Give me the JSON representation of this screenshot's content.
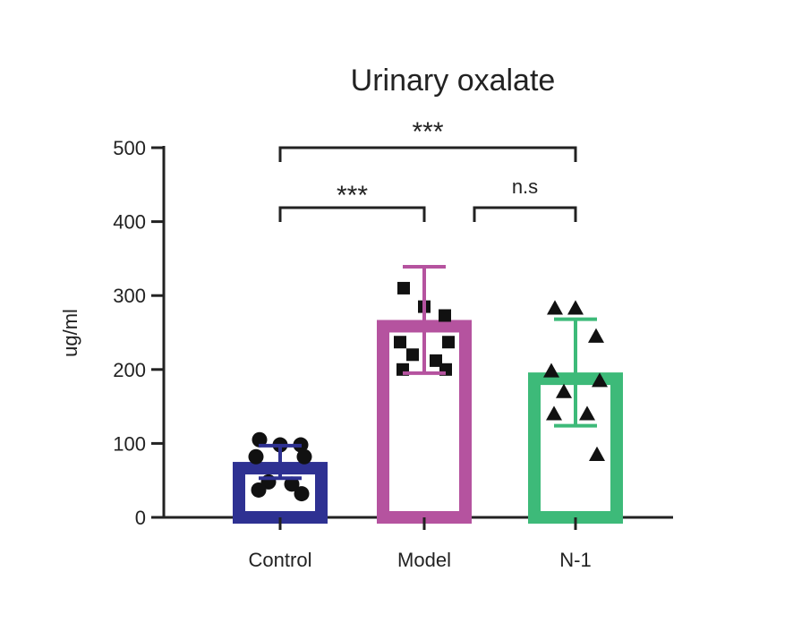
{
  "chart_data": {
    "type": "bar",
    "title": "Urinary oxalate",
    "xlabel": "",
    "ylabel": "ug/ml",
    "ylim": [
      0,
      500
    ],
    "yticks": [
      0,
      100,
      200,
      300,
      400,
      500
    ],
    "categories": [
      "Control",
      "Model",
      "N-1"
    ],
    "series": [
      {
        "values": [
          75,
          267,
          196
        ],
        "errors": [
          22,
          72,
          72
        ],
        "colors": [
          "#2e3192",
          "#b5539f",
          "#3dba79"
        ],
        "markers": [
          "circle",
          "square",
          "triangle"
        ],
        "points": [
          [
            105,
            98,
            98,
            82,
            82,
            48,
            45,
            37,
            32
          ],
          [
            310,
            285,
            273,
            237,
            237,
            220,
            212,
            200,
            200
          ],
          [
            283,
            283,
            245,
            198,
            185,
            170,
            140,
            140,
            85
          ]
        ]
      }
    ],
    "significance": [
      {
        "from": 0,
        "to": 2,
        "label": "***"
      },
      {
        "from": 0,
        "to": 1,
        "label": "***"
      },
      {
        "from": 1,
        "to": 2,
        "label": "n.s"
      }
    ]
  }
}
